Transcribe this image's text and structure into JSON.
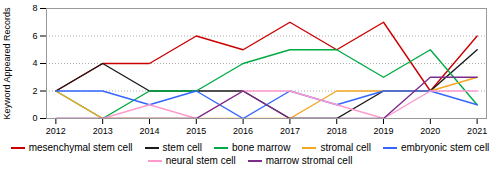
{
  "chart_data": {
    "type": "line",
    "x": [
      2012,
      2013,
      2014,
      2015,
      2016,
      2017,
      2018,
      2019,
      2020,
      2021
    ],
    "xlim": [
      2011.8,
      2021.2
    ],
    "xticks": [
      2012,
      2013,
      2014,
      2015,
      2016,
      2017,
      2018,
      2019,
      2020,
      2021
    ],
    "ylabel": "Keyword Appeared Records",
    "ylim": [
      0,
      8
    ],
    "yticks": [
      0,
      2,
      4,
      6,
      8
    ],
    "grid": true,
    "legend": "bottom",
    "series": [
      {
        "name": "mesenchymal stem cell",
        "color": "#cc0000",
        "values": [
          2,
          4,
          4,
          6,
          5,
          7,
          5,
          7,
          2,
          6
        ]
      },
      {
        "name": "stem cell",
        "color": "#1a1a1a",
        "values": [
          2,
          4,
          2,
          2,
          2,
          0,
          0,
          2,
          2,
          5
        ]
      },
      {
        "name": "bone marrow",
        "color": "#00aa44",
        "values": [
          2,
          0,
          2,
          2,
          4,
          5,
          5,
          3,
          5,
          1
        ]
      },
      {
        "name": "stromal cell",
        "color": "#f5a623",
        "values": [
          2,
          0,
          0,
          0,
          0,
          0,
          2,
          2,
          2,
          3
        ]
      },
      {
        "name": "embryonic stem cell",
        "color": "#3366ff",
        "values": [
          2,
          2,
          1,
          2,
          0,
          2,
          1,
          2,
          2,
          1
        ]
      },
      {
        "name": "neural stem cell",
        "color": "#ff99cc",
        "values": [
          0,
          0,
          1,
          0,
          2,
          2,
          1,
          0,
          2,
          2
        ]
      },
      {
        "name": "marrow stromal cell",
        "color": "#7b2d8b",
        "values": [
          0,
          0,
          0,
          0,
          2,
          0,
          0,
          0,
          3,
          3
        ]
      }
    ]
  }
}
